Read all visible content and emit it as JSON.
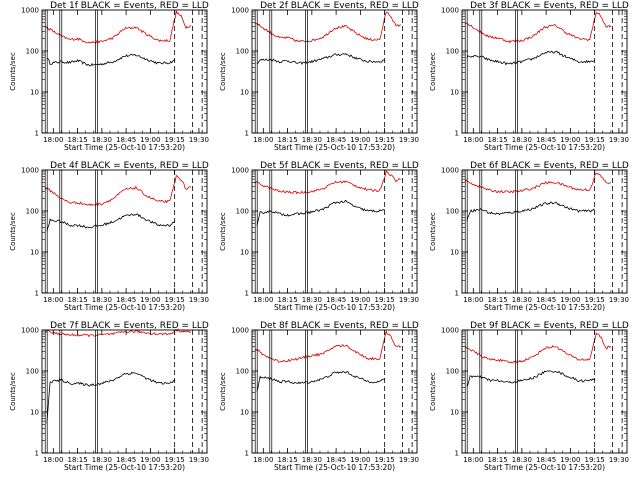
{
  "colors": {
    "events": "#000000",
    "lld": "#e00000",
    "background": "#ffffff"
  },
  "chart_data": [
    {
      "type": "line",
      "title": "Det 1f BLACK = Events, RED = LLD",
      "xlabel": "Start Time (25-Oct-10 17:53:20)",
      "ylabel": "Counts/sec",
      "yscale": "log",
      "ylim": [
        1,
        1000
      ],
      "x_ticks": [
        "18:00",
        "18:15",
        "18:30",
        "18:45",
        "19:00",
        "19:15",
        "19:30"
      ],
      "y_ticks": [
        "1",
        "10",
        "100",
        "1000"
      ],
      "series": [
        {
          "name": "Events",
          "color": "#000000",
          "x": [
            "17:56",
            "17:58",
            "18:05",
            "18:10",
            "18:15",
            "18:22",
            "18:30",
            "18:37",
            "18:44",
            "18:51",
            "18:58",
            "19:05",
            "19:12",
            "19:15"
          ],
          "values": [
            70,
            50,
            55,
            52,
            58,
            45,
            48,
            55,
            75,
            80,
            62,
            50,
            52,
            60
          ]
        },
        {
          "name": "LLD",
          "color": "#e00000",
          "x": [
            "17:55",
            "18:00",
            "18:05",
            "18:10",
            "18:15",
            "18:22",
            "18:30",
            "18:37",
            "18:44",
            "18:51",
            "18:58",
            "19:05",
            "19:12",
            "19:16",
            "19:19",
            "19:22",
            "19:25"
          ],
          "values": [
            400,
            300,
            230,
            190,
            200,
            160,
            170,
            210,
            350,
            380,
            250,
            180,
            180,
            900,
            700,
            380,
            420
          ]
        }
      ]
    },
    {
      "type": "line",
      "title": "Det 2f BLACK = Events, RED = LLD",
      "xlabel": "Start Time (25-Oct-10 17:53:20)",
      "ylabel": "Counts/sec",
      "yscale": "log",
      "ylim": [
        1,
        1000
      ],
      "x_ticks": [
        "18:00",
        "18:15",
        "18:30",
        "18:45",
        "19:00",
        "19:15",
        "19:30"
      ],
      "y_ticks": [
        "1",
        "10",
        "100",
        "1000"
      ],
      "series": [
        {
          "name": "Events",
          "color": "#000000",
          "x": [
            "17:56",
            "17:58",
            "18:05",
            "18:10",
            "18:15",
            "18:22",
            "18:30",
            "18:37",
            "18:44",
            "18:51",
            "18:58",
            "19:05",
            "19:12",
            "19:15"
          ],
          "values": [
            50,
            60,
            62,
            55,
            58,
            50,
            55,
            65,
            80,
            85,
            65,
            55,
            55,
            60
          ]
        },
        {
          "name": "LLD",
          "color": "#e00000",
          "x": [
            "17:55",
            "18:00",
            "18:05",
            "18:10",
            "18:15",
            "18:22",
            "18:30",
            "18:37",
            "18:44",
            "18:51",
            "18:58",
            "19:05",
            "19:12",
            "19:16",
            "19:19",
            "19:22",
            "19:25"
          ],
          "values": [
            500,
            360,
            270,
            210,
            210,
            170,
            180,
            220,
            360,
            400,
            260,
            190,
            190,
            900,
            700,
            400,
            440
          ]
        }
      ]
    },
    {
      "type": "line",
      "title": "Det 3f BLACK = Events, RED = LLD",
      "xlabel": "Start Time (25-Oct-10 17:53:20)",
      "ylabel": "Counts/sec",
      "yscale": "log",
      "ylim": [
        1,
        1000
      ],
      "x_ticks": [
        "18:00",
        "18:15",
        "18:30",
        "18:45",
        "19:00",
        "19:15",
        "19:30"
      ],
      "y_ticks": [
        "1",
        "10",
        "100",
        "1000"
      ],
      "series": [
        {
          "name": "Events",
          "color": "#000000",
          "x": [
            "17:56",
            "17:58",
            "18:05",
            "18:10",
            "18:15",
            "18:22",
            "18:30",
            "18:37",
            "18:44",
            "18:51",
            "18:58",
            "19:05",
            "19:12",
            "19:15"
          ],
          "values": [
            70,
            75,
            72,
            60,
            55,
            48,
            55,
            65,
            90,
            95,
            70,
            55,
            55,
            60
          ]
        },
        {
          "name": "LLD",
          "color": "#e00000",
          "x": [
            "17:55",
            "18:00",
            "18:05",
            "18:10",
            "18:15",
            "18:22",
            "18:30",
            "18:37",
            "18:44",
            "18:51",
            "18:58",
            "19:05",
            "19:12",
            "19:16",
            "19:19",
            "19:22",
            "19:25"
          ],
          "values": [
            500,
            380,
            280,
            220,
            210,
            170,
            180,
            230,
            380,
            420,
            270,
            200,
            190,
            900,
            700,
            380,
            420
          ]
        }
      ]
    },
    {
      "type": "line",
      "title": "Det 4f BLACK = Events, RED = LLD",
      "xlabel": "Start Time (25-Oct-10 17:53:20)",
      "ylabel": "Counts/sec",
      "yscale": "log",
      "ylim": [
        1,
        1000
      ],
      "x_ticks": [
        "18:00",
        "18:15",
        "18:30",
        "18:45",
        "19:00",
        "19:15",
        "19:30"
      ],
      "y_ticks": [
        "1",
        "10",
        "100",
        "1000"
      ],
      "series": [
        {
          "name": "Events",
          "color": "#000000",
          "x": [
            "17:56",
            "17:58",
            "18:05",
            "18:10",
            "18:15",
            "18:22",
            "18:30",
            "18:37",
            "18:44",
            "18:51",
            "18:58",
            "19:05",
            "19:12",
            "19:15"
          ],
          "values": [
            30,
            60,
            55,
            45,
            45,
            40,
            45,
            55,
            75,
            85,
            60,
            45,
            45,
            55
          ]
        },
        {
          "name": "LLD",
          "color": "#e00000",
          "x": [
            "17:55",
            "18:00",
            "18:05",
            "18:10",
            "18:15",
            "18:22",
            "18:30",
            "18:37",
            "18:44",
            "18:51",
            "18:58",
            "19:05",
            "19:12",
            "19:16",
            "19:19",
            "19:22",
            "19:25"
          ],
          "values": [
            380,
            280,
            200,
            160,
            160,
            140,
            150,
            200,
            330,
            370,
            230,
            170,
            170,
            700,
            600,
            340,
            380
          ]
        }
      ]
    },
    {
      "type": "line",
      "title": "Det 5f BLACK = Events, RED = LLD",
      "xlabel": "Start Time (25-Oct-10 17:53:20)",
      "ylabel": "Counts/sec",
      "yscale": "log",
      "ylim": [
        1,
        1000
      ],
      "x_ticks": [
        "18:00",
        "18:15",
        "18:30",
        "18:45",
        "19:00",
        "19:15",
        "19:30"
      ],
      "y_ticks": [
        "1",
        "10",
        "100",
        "1000"
      ],
      "series": [
        {
          "name": "Events",
          "color": "#000000",
          "x": [
            "17:56",
            "17:58",
            "18:05",
            "18:10",
            "18:15",
            "18:22",
            "18:30",
            "18:37",
            "18:44",
            "18:51",
            "18:58",
            "19:05",
            "19:12",
            "19:15"
          ],
          "values": [
            40,
            90,
            100,
            85,
            80,
            85,
            95,
            110,
            160,
            170,
            120,
            100,
            100,
            110
          ]
        },
        {
          "name": "LLD",
          "color": "#e00000",
          "x": [
            "17:55",
            "18:00",
            "18:05",
            "18:10",
            "18:15",
            "18:22",
            "18:30",
            "18:37",
            "18:44",
            "18:51",
            "18:58",
            "19:05",
            "19:12",
            "19:16",
            "19:19",
            "19:22",
            "19:25"
          ],
          "values": [
            500,
            420,
            350,
            300,
            290,
            280,
            300,
            350,
            500,
            520,
            400,
            320,
            320,
            900,
            750,
            550,
            600
          ]
        }
      ]
    },
    {
      "type": "line",
      "title": "Det 6f BLACK = Events, RED = LLD",
      "xlabel": "Start Time (25-Oct-10 17:53:20)",
      "ylabel": "Counts/sec",
      "yscale": "log",
      "ylim": [
        1,
        1000
      ],
      "x_ticks": [
        "18:00",
        "18:15",
        "18:30",
        "18:45",
        "19:00",
        "19:15",
        "19:30"
      ],
      "y_ticks": [
        "1",
        "10",
        "100",
        "1000"
      ],
      "series": [
        {
          "name": "Events",
          "color": "#000000",
          "x": [
            "17:56",
            "17:58",
            "18:05",
            "18:10",
            "18:15",
            "18:22",
            "18:30",
            "18:37",
            "18:44",
            "18:51",
            "18:58",
            "19:05",
            "19:12",
            "19:15"
          ],
          "values": [
            60,
            100,
            110,
            90,
            85,
            90,
            100,
            115,
            150,
            160,
            120,
            100,
            100,
            110
          ]
        },
        {
          "name": "LLD",
          "color": "#e00000",
          "x": [
            "17:55",
            "18:00",
            "18:05",
            "18:10",
            "18:15",
            "18:22",
            "18:30",
            "18:37",
            "18:44",
            "18:51",
            "18:58",
            "19:05",
            "19:12",
            "19:16",
            "19:19",
            "19:22",
            "19:25"
          ],
          "values": [
            550,
            450,
            380,
            320,
            300,
            290,
            310,
            360,
            480,
            500,
            400,
            330,
            330,
            850,
            700,
            500,
            480
          ]
        }
      ]
    },
    {
      "type": "line",
      "title": "Det 7f BLACK = Events, RED = LLD",
      "xlabel": "Start Time (25-Oct-10 17:53:20)",
      "ylabel": "Counts/sec",
      "yscale": "log",
      "ylim": [
        1,
        1000
      ],
      "x_ticks": [
        "18:00",
        "18:15",
        "18:30",
        "18:45",
        "19:00",
        "19:15",
        "19:30"
      ],
      "y_ticks": [
        "1",
        "10",
        "100",
        "1000"
      ],
      "series": [
        {
          "name": "Events",
          "color": "#000000",
          "x": [
            "17:56",
            "17:58",
            "18:05",
            "18:10",
            "18:15",
            "18:22",
            "18:30",
            "18:37",
            "18:44",
            "18:51",
            "18:58",
            "19:05",
            "19:12",
            "19:15"
          ],
          "values": [
            5,
            55,
            60,
            50,
            50,
            45,
            50,
            60,
            85,
            90,
            65,
            50,
            50,
            60
          ]
        },
        {
          "name": "LLD",
          "color": "#e00000",
          "x": [
            "17:55",
            "18:00",
            "18:05",
            "18:10",
            "18:15",
            "18:22",
            "18:30",
            "18:37",
            "18:44",
            "18:51",
            "18:58",
            "19:05",
            "19:12",
            "19:16",
            "19:19",
            "19:22",
            "19:25"
          ],
          "values": [
            950,
            850,
            800,
            760,
            750,
            740,
            760,
            800,
            900,
            920,
            850,
            800,
            800,
            1000,
            950,
            900,
            920
          ]
        }
      ]
    },
    {
      "type": "line",
      "title": "Det 8f BLACK = Events, RED = LLD",
      "xlabel": "Start Time (25-Oct-10 17:53:20)",
      "ylabel": "Counts/sec",
      "yscale": "log",
      "ylim": [
        1,
        1000
      ],
      "x_ticks": [
        "18:00",
        "18:15",
        "18:30",
        "18:45",
        "19:00",
        "19:15",
        "19:30"
      ],
      "y_ticks": [
        "1",
        "10",
        "100",
        "1000"
      ],
      "series": [
        {
          "name": "Events",
          "color": "#000000",
          "x": [
            "17:56",
            "17:58",
            "18:05",
            "18:10",
            "18:15",
            "18:22",
            "18:30",
            "18:37",
            "18:44",
            "18:51",
            "18:58",
            "19:05",
            "19:12",
            "19:15"
          ],
          "values": [
            30,
            70,
            65,
            55,
            55,
            50,
            55,
            65,
            90,
            95,
            70,
            55,
            55,
            65
          ]
        },
        {
          "name": "LLD",
          "color": "#e00000",
          "x": [
            "17:55",
            "18:00",
            "18:05",
            "18:10",
            "18:15",
            "18:22",
            "18:30",
            "18:37",
            "18:44",
            "18:51",
            "18:58",
            "19:05",
            "19:12",
            "19:16",
            "19:19",
            "19:22",
            "19:25"
          ],
          "values": [
            350,
            250,
            200,
            170,
            180,
            200,
            240,
            260,
            400,
            420,
            280,
            200,
            200,
            900,
            700,
            380,
            400
          ]
        }
      ]
    },
    {
      "type": "line",
      "title": "Det 9f BLACK = Events, RED = LLD",
      "xlabel": "Start Time (25-Oct-10 17:53:20)",
      "ylabel": "Counts/sec",
      "yscale": "log",
      "ylim": [
        1,
        1000
      ],
      "x_ticks": [
        "18:00",
        "18:15",
        "18:30",
        "18:45",
        "19:00",
        "19:15",
        "19:30"
      ],
      "y_ticks": [
        "1",
        "10",
        "100",
        "1000"
      ],
      "series": [
        {
          "name": "Events",
          "color": "#000000",
          "x": [
            "17:56",
            "17:58",
            "18:05",
            "18:10",
            "18:15",
            "18:22",
            "18:30",
            "18:37",
            "18:44",
            "18:51",
            "18:58",
            "19:05",
            "19:12",
            "19:15"
          ],
          "values": [
            40,
            75,
            70,
            60,
            58,
            52,
            58,
            68,
            95,
            100,
            75,
            58,
            58,
            65
          ]
        },
        {
          "name": "LLD",
          "color": "#e00000",
          "x": [
            "17:55",
            "18:00",
            "18:05",
            "18:10",
            "18:15",
            "18:22",
            "18:30",
            "18:37",
            "18:44",
            "18:51",
            "18:58",
            "19:05",
            "19:12",
            "19:16",
            "19:19",
            "19:22",
            "19:25"
          ],
          "values": [
            400,
            300,
            230,
            190,
            190,
            160,
            175,
            220,
            360,
            400,
            260,
            190,
            190,
            850,
            650,
            360,
            400
          ]
        }
      ]
    }
  ]
}
